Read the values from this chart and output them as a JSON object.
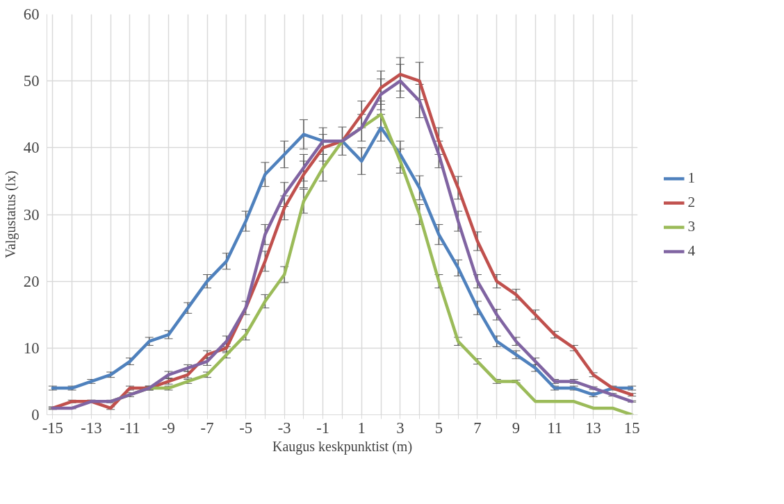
{
  "chart_data": {
    "type": "line",
    "xlabel": "Kaugus keskpunktist (m)",
    "ylabel": "Valgustatus (lx)",
    "x": [
      -15,
      -14,
      -13,
      -12,
      -11,
      -10,
      -9,
      -8,
      -7,
      -6,
      -5,
      -4,
      -3,
      -2,
      -1,
      0,
      1,
      2,
      3,
      4,
      5,
      6,
      7,
      8,
      9,
      10,
      11,
      12,
      13,
      14,
      15
    ],
    "xlim": [
      -15.3,
      15.3
    ],
    "ylim": [
      0,
      60
    ],
    "xticks": [
      -15,
      {
        "value": -14,
        "label": null
      },
      -13,
      {
        "value": -12,
        "label": null
      },
      -11,
      {
        "value": -10,
        "label": null
      },
      -9,
      {
        "value": -8,
        "label": null
      },
      -7,
      {
        "value": -6,
        "label": null
      },
      -5,
      {
        "value": -4,
        "label": null
      },
      -3,
      {
        "value": -2,
        "label": null
      },
      -1,
      {
        "value": 0,
        "label": null
      },
      1,
      {
        "value": 2,
        "label": null
      },
      3,
      {
        "value": 4,
        "label": null
      },
      5,
      {
        "value": 6,
        "label": null
      },
      7,
      {
        "value": 8,
        "label": null
      },
      9,
      {
        "value": 10,
        "label": null
      },
      11,
      {
        "value": 12,
        "label": null
      },
      13,
      {
        "value": 14,
        "label": null
      },
      15
    ],
    "yticks": [
      0,
      10,
      20,
      30,
      40,
      50,
      60
    ],
    "grid": true,
    "legend": "right",
    "marker": "none",
    "line_style": "solid",
    "series": [
      {
        "name": "1",
        "color": "#4f81bd",
        "values": [
          4,
          4,
          5,
          6,
          8,
          11,
          12,
          16,
          20,
          23,
          29,
          36,
          39,
          42,
          41,
          41,
          38,
          43,
          39,
          34,
          27,
          22,
          16,
          11,
          9,
          7,
          4,
          4,
          3,
          4,
          4
        ],
        "errors": [
          0.3,
          0.3,
          0.3,
          0.4,
          0.5,
          0.6,
          0.6,
          0.8,
          1,
          1.2,
          1.5,
          1.8,
          2,
          2.2,
          2,
          2.1,
          2,
          2,
          2,
          1.8,
          1.5,
          1.2,
          1,
          0.8,
          0.6,
          0.5,
          0.3,
          0.3,
          0.3,
          0.3,
          0.3
        ]
      },
      {
        "name": "2",
        "color": "#c0504d",
        "values": [
          1,
          2,
          2,
          1,
          4,
          4,
          5,
          6,
          9,
          10,
          16,
          23,
          31,
          36,
          40,
          41,
          45,
          49,
          51,
          50,
          41,
          34,
          26,
          20,
          18,
          15,
          12,
          10,
          6,
          4,
          3
        ],
        "errors": [
          0.2,
          0.2,
          0.2,
          0.2,
          0.3,
          0.3,
          0.4,
          0.5,
          0.6,
          0.7,
          1,
          1.5,
          1.8,
          2,
          2,
          null,
          2,
          2.5,
          2.5,
          2.8,
          2,
          1.7,
          1.4,
          1,
          0.8,
          0.7,
          0.5,
          0.4,
          0.3,
          0.2,
          0.2
        ]
      },
      {
        "name": "3",
        "color": "#9bbb59",
        "values": [
          null,
          null,
          null,
          2,
          3,
          4,
          4,
          5,
          6,
          9,
          12,
          17,
          21,
          32,
          37,
          41,
          43,
          45,
          38,
          30,
          20,
          11,
          8,
          5,
          5,
          2,
          2,
          2,
          1,
          1,
          0
        ],
        "errors": [
          null,
          null,
          null,
          null,
          null,
          0.2,
          0.3,
          0.3,
          0.4,
          0.5,
          0.8,
          1,
          1.2,
          1.8,
          2,
          null,
          2,
          2,
          1.8,
          1.5,
          1,
          0.6,
          0.4,
          0.3,
          0.2,
          null,
          null,
          null,
          null,
          null,
          null
        ]
      },
      {
        "name": "4",
        "color": "#8064a2",
        "values": [
          1,
          1,
          2,
          2,
          3,
          4,
          6,
          7,
          8,
          11,
          16,
          27,
          33,
          37,
          41,
          41,
          43,
          48,
          50,
          47,
          39,
          29,
          20,
          15,
          11,
          8,
          5,
          5,
          4,
          3,
          2
        ],
        "errors": [
          0.1,
          0.1,
          0.2,
          0.2,
          0.3,
          0.3,
          0.5,
          0.5,
          0.6,
          0.8,
          null,
          1.5,
          1.8,
          2,
          null,
          null,
          null,
          2.3,
          2.5,
          2.5,
          2,
          1.5,
          1,
          0.8,
          0.6,
          0.5,
          0.3,
          0.3,
          0.2,
          0.2,
          0.1
        ]
      }
    ]
  }
}
